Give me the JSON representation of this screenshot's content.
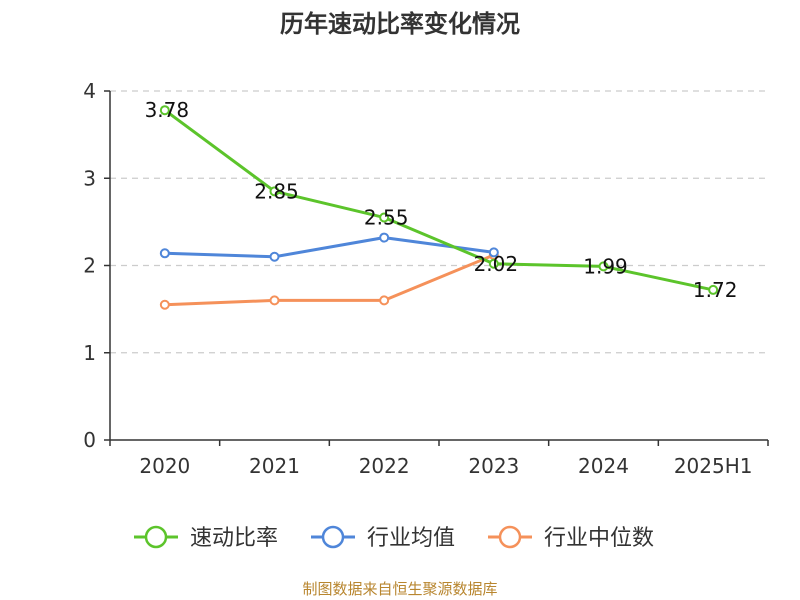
{
  "chart_data": {
    "type": "line",
    "title": "历年速动比率变化情况",
    "categories": [
      "2020",
      "2021",
      "2022",
      "2023",
      "2024",
      "2025H1"
    ],
    "yticks": [
      "0",
      "1",
      "2",
      "3",
      "4"
    ],
    "ylim": [
      0,
      4
    ],
    "grid": true,
    "legend_position": "bottom",
    "series": [
      {
        "name": "速动比率",
        "color": "#5cc42b",
        "values": [
          3.78,
          2.85,
          2.55,
          2.02,
          1.99,
          1.72
        ],
        "labels": [
          "3.78",
          "2.85",
          "2.55",
          "2.02",
          "1.99",
          "1.72"
        ]
      },
      {
        "name": "行业均值",
        "color": "#4f86d9",
        "values": [
          2.14,
          2.1,
          2.32,
          2.15,
          null,
          null
        ]
      },
      {
        "name": "行业中位数",
        "color": "#f5915a",
        "values": [
          1.55,
          1.6,
          1.6,
          2.12,
          null,
          null
        ]
      }
    ]
  },
  "footer": {
    "source": "制图数据来自恒生聚源数据库"
  }
}
